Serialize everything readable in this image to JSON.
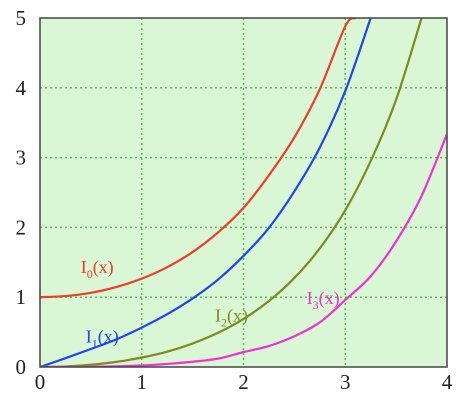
{
  "chart_data": {
    "type": "line",
    "title": "",
    "xlabel": "",
    "ylabel": "",
    "xlim": [
      0,
      4
    ],
    "ylim": [
      0,
      5
    ],
    "x_ticks": [
      0,
      1,
      2,
      3,
      4
    ],
    "y_ticks": [
      0,
      1,
      2,
      3,
      4,
      5
    ],
    "grid": true,
    "grid_color": "#4fc34f",
    "plot_background": "#d9f7d5",
    "series": [
      {
        "label_main": "I",
        "label_sub": "0",
        "label_tail": "(x)",
        "color": "#f03c28",
        "x": [
          0,
          0.25,
          0.5,
          0.75,
          1.0,
          1.25,
          1.5,
          1.75,
          2.0,
          2.25,
          2.5,
          2.75,
          3.0,
          3.1
        ],
        "y": [
          1.0,
          1.016,
          1.063,
          1.146,
          1.266,
          1.43,
          1.647,
          1.928,
          2.28,
          2.747,
          3.29,
          3.98,
          4.881,
          5.0
        ]
      },
      {
        "label_main": "I",
        "label_sub": "1",
        "label_tail": "(x)",
        "color": "#1e46f0",
        "x": [
          0,
          0.25,
          0.5,
          0.75,
          1.0,
          1.25,
          1.5,
          1.75,
          2.0,
          2.25,
          2.5,
          2.75,
          3.0,
          3.25
        ],
        "y": [
          0,
          0.126,
          0.258,
          0.396,
          0.565,
          0.756,
          0.982,
          1.253,
          1.591,
          1.994,
          2.517,
          3.145,
          3.953,
          5.0
        ]
      },
      {
        "label_main": "I",
        "label_sub": "2",
        "label_tail": "(x)",
        "color": "#7f8a1e",
        "x": [
          0,
          0.25,
          0.5,
          0.75,
          1.0,
          1.25,
          1.5,
          1.75,
          2.0,
          2.25,
          2.5,
          2.75,
          3.0,
          3.25,
          3.5,
          3.75
        ],
        "y": [
          0,
          0.008,
          0.032,
          0.073,
          0.136,
          0.22,
          0.337,
          0.49,
          0.689,
          0.945,
          1.276,
          1.7,
          2.245,
          2.95,
          3.83,
          5.0
        ]
      },
      {
        "label_main": "I",
        "label_sub": "3",
        "label_tail": "(x)",
        "color": "#f032d2",
        "x": [
          0,
          0.5,
          1.0,
          1.25,
          1.5,
          1.75,
          2.0,
          2.25,
          2.5,
          2.75,
          3.0,
          3.25,
          3.5,
          3.75,
          4.0
        ],
        "y": [
          0,
          0.003,
          0.022,
          0.044,
          0.075,
          0.12,
          0.213,
          0.3,
          0.44,
          0.64,
          0.96,
          1.3,
          1.8,
          2.45,
          3.34
        ]
      }
    ],
    "annotations": [
      {
        "series": 0,
        "x": 0.4,
        "y": 1.35
      },
      {
        "series": 1,
        "x": 0.45,
        "y": 0.35
      },
      {
        "series": 2,
        "x": 1.72,
        "y": 0.65
      },
      {
        "series": 3,
        "x": 2.62,
        "y": 0.9
      }
    ]
  }
}
